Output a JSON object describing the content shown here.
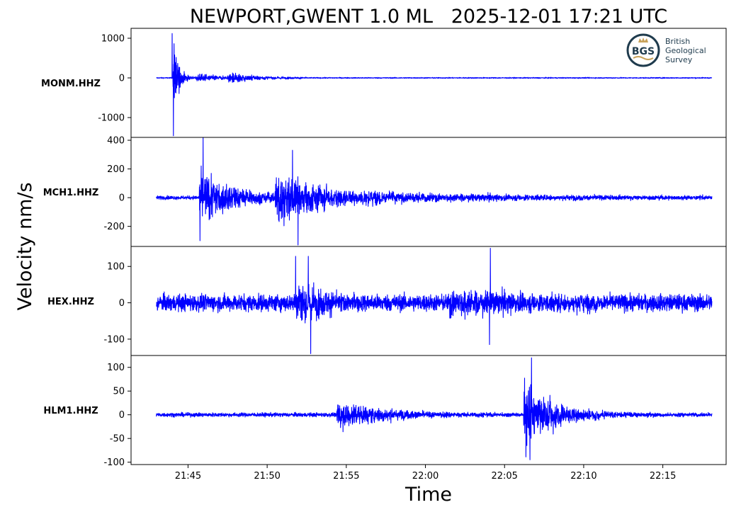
{
  "chart_data": {
    "type": "line",
    "title": "NEWPORT,GWENT 1.0 ML   2025-12-01 17:21 UTC",
    "xlabel": "Time",
    "ylabel": "Velocity nm/s",
    "trace_color": "#0000ff",
    "x_range_min": [
      21.5,
      22.5
    ],
    "x_ticks": [
      {
        "label": "21:45",
        "min": 1305
      },
      {
        "label": "21:50",
        "min": 1310
      },
      {
        "label": "21:55",
        "min": 1315
      },
      {
        "label": "22:00",
        "min": 1320
      },
      {
        "label": "22:05",
        "min": 1325
      },
      {
        "label": "22:10",
        "min": 1330
      },
      {
        "label": "22:15",
        "min": 1335
      }
    ],
    "xlim_min": [
      1301.4,
      1339.0
    ],
    "trace_span_min": [
      1303.0,
      1338.1
    ],
    "panels": [
      {
        "station": "MONM.HHZ",
        "ylim": [
          -1500,
          1250
        ],
        "y_ticks": [
          {
            "label": "1000",
            "v": 1000
          },
          {
            "label": "0",
            "v": 0
          },
          {
            "label": "-1000",
            "v": -1000
          }
        ],
        "noise": 12,
        "events": [
          {
            "t": 1304.05,
            "amp": 1060,
            "decay": 0.35,
            "period": 0.04,
            "dur": 2.0
          },
          {
            "t": 1305.5,
            "amp": 120,
            "decay": 1.8,
            "period": 0.06,
            "dur": 4.0
          },
          {
            "t": 1307.5,
            "amp": 140,
            "decay": 2.2,
            "period": 0.05,
            "dur": 5.0
          }
        ],
        "spikes": [
          {
            "t": 1304.0,
            "v": 1120
          },
          {
            "t": 1304.08,
            "v": -1460
          },
          {
            "t": 1304.15,
            "v": 580
          }
        ]
      },
      {
        "station": "MCH1.HHZ",
        "ylim": [
          -340,
          420
        ],
        "y_ticks": [
          {
            "label": "400",
            "v": 400
          },
          {
            "label": "200",
            "v": 200
          },
          {
            "label": "0",
            "v": 0
          },
          {
            "label": "-200",
            "v": -200
          }
        ],
        "noise": 12,
        "events": [
          {
            "t": 1305.7,
            "amp": 190,
            "decay": 2.6,
            "period": 0.05,
            "dur": 8.0
          },
          {
            "t": 1310.5,
            "amp": 200,
            "decay": 3.5,
            "period": 0.05,
            "dur": 10.0
          },
          {
            "t": 1316.0,
            "amp": 40,
            "decay": 12.0,
            "period": 0.05,
            "dur": 22.0
          }
        ],
        "spikes": [
          {
            "t": 1305.95,
            "v": 420
          },
          {
            "t": 1305.75,
            "v": -300
          },
          {
            "t": 1311.6,
            "v": 330
          },
          {
            "t": 1311.95,
            "v": -330
          }
        ]
      },
      {
        "station": "HEX.HHZ",
        "ylim": [
          -145,
          155
        ],
        "y_ticks": [
          {
            "label": "100",
            "v": 100
          },
          {
            "label": "0",
            "v": 0
          },
          {
            "label": "-100",
            "v": -100
          }
        ],
        "noise": 22,
        "events": [
          {
            "t": 1311.8,
            "amp": 85,
            "decay": 1.6,
            "period": 0.05,
            "dur": 4.0
          },
          {
            "t": 1321.5,
            "amp": 35,
            "decay": 6.0,
            "period": 0.05,
            "dur": 10.0
          }
        ],
        "spikes": [
          {
            "t": 1311.8,
            "v": 128
          },
          {
            "t": 1312.6,
            "v": 128
          },
          {
            "t": 1312.75,
            "v": -140
          },
          {
            "t": 1324.1,
            "v": 150
          },
          {
            "t": 1324.05,
            "v": -115
          }
        ]
      },
      {
        "station": "HLM1.HHZ",
        "ylim": [
          -105,
          125
        ],
        "y_ticks": [
          {
            "label": "100",
            "v": 100
          },
          {
            "label": "50",
            "v": 50
          },
          {
            "label": "0",
            "v": 0
          },
          {
            "label": "-50",
            "v": -50
          },
          {
            "label": "-100",
            "v": -100
          }
        ],
        "noise": 4,
        "events": [
          {
            "t": 1314.4,
            "amp": 32,
            "decay": 3.5,
            "period": 0.06,
            "dur": 25.0
          },
          {
            "t": 1326.2,
            "amp": 70,
            "decay": 2.3,
            "period": 0.06,
            "dur": 12.0
          }
        ],
        "spikes": [
          {
            "t": 1326.7,
            "v": 120
          },
          {
            "t": 1326.6,
            "v": -95
          }
        ]
      }
    ]
  },
  "logo": {
    "initials": "BGS",
    "lines": [
      "British",
      "Geological",
      "Survey"
    ]
  }
}
